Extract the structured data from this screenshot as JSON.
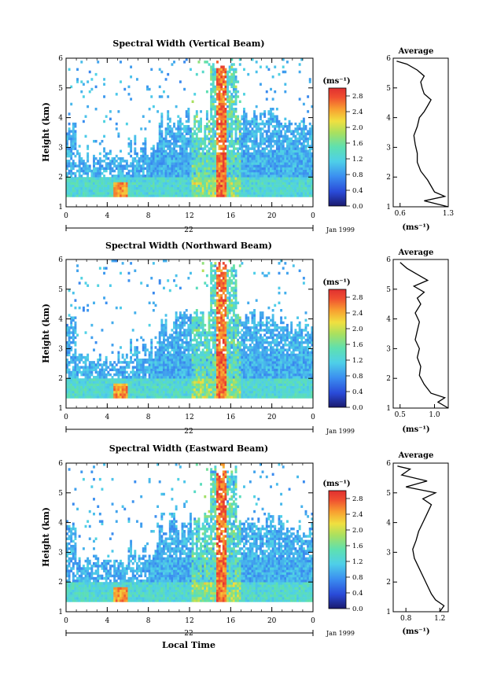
{
  "figure": {
    "xlabel": "Local Time",
    "day_label": "22",
    "month_label": "Jan 1999",
    "ylabel": "Height (km)",
    "avg_title": "Average",
    "unit": "(ms⁻¹)"
  },
  "chart_data": [
    {
      "type": "heatmap",
      "title": "Spectral Width (Vertical Beam)",
      "x_ticks": [
        "0",
        "4",
        "8",
        "12",
        "16",
        "20",
        "0"
      ],
      "xlim": [
        0,
        24
      ],
      "y_ticks": [
        "1",
        "2",
        "3",
        "4",
        "5",
        "6"
      ],
      "ylim": [
        1,
        6
      ],
      "colorbar_ticks": [
        "0.0",
        "0.4",
        "0.8",
        "1.2",
        "1.6",
        "2.0",
        "2.4",
        "2.8"
      ],
      "colorbar_range": [
        0,
        3.0
      ],
      "average_profile": {
        "x_ticks": [
          "0.6",
          "1.3"
        ],
        "xlim": [
          0.5,
          1.3
        ],
        "heights": [
          1.0,
          1.2,
          1.35,
          1.5,
          1.7,
          1.9,
          2.2,
          2.5,
          2.8,
          3.1,
          3.4,
          3.7,
          4.0,
          4.2,
          4.4,
          4.6,
          4.8,
          5.0,
          5.2,
          5.4,
          5.6,
          5.8,
          5.9
        ],
        "values": [
          1.3,
          0.95,
          1.25,
          1.1,
          1.05,
          1.0,
          0.9,
          0.85,
          0.85,
          0.82,
          0.8,
          0.85,
          0.88,
          0.95,
          1.0,
          1.05,
          0.95,
          0.92,
          0.9,
          0.95,
          0.85,
          0.7,
          0.55
        ]
      }
    },
    {
      "type": "heatmap",
      "title": "Spectral Width (Northward Beam)",
      "x_ticks": [
        "0",
        "4",
        "8",
        "12",
        "16",
        "20",
        "0"
      ],
      "xlim": [
        0,
        24
      ],
      "y_ticks": [
        "1",
        "2",
        "3",
        "4",
        "5",
        "6"
      ],
      "ylim": [
        1,
        6
      ],
      "colorbar_ticks": [
        "0.0",
        "0.4",
        "0.8",
        "1.2",
        "1.6",
        "2.0",
        "2.4",
        "2.8"
      ],
      "colorbar_range": [
        0,
        3.0
      ],
      "average_profile": {
        "x_ticks": [
          "0.5",
          "1.0"
        ],
        "xlim": [
          0.4,
          1.2
        ],
        "heights": [
          1.0,
          1.2,
          1.35,
          1.5,
          1.8,
          2.1,
          2.4,
          2.7,
          3.0,
          3.3,
          3.6,
          3.9,
          4.2,
          4.5,
          4.7,
          4.9,
          5.1,
          5.3,
          5.5,
          5.7,
          5.9
        ],
        "values": [
          1.2,
          1.05,
          1.15,
          0.95,
          0.85,
          0.78,
          0.8,
          0.75,
          0.78,
          0.72,
          0.75,
          0.78,
          0.72,
          0.8,
          0.75,
          0.85,
          0.7,
          0.9,
          0.75,
          0.6,
          0.5
        ]
      }
    },
    {
      "type": "heatmap",
      "title": "Spectral Width (Eastward Beam)",
      "x_ticks": [
        "0",
        "4",
        "8",
        "12",
        "16",
        "20",
        "0"
      ],
      "xlim": [
        0,
        24
      ],
      "y_ticks": [
        "1",
        "2",
        "3",
        "4",
        "5",
        "6"
      ],
      "ylim": [
        1,
        6
      ],
      "colorbar_ticks": [
        "0.0",
        "0.4",
        "0.8",
        "1.2",
        "1.6",
        "2.0",
        "2.4",
        "2.8"
      ],
      "colorbar_range": [
        0,
        3.0
      ],
      "average_profile": {
        "x_ticks": [
          "0.8",
          "1.2"
        ],
        "xlim": [
          0.65,
          1.3
        ],
        "heights": [
          1.0,
          1.2,
          1.4,
          1.6,
          1.9,
          2.2,
          2.5,
          2.8,
          3.1,
          3.4,
          3.7,
          4.0,
          4.3,
          4.6,
          4.8,
          5.0,
          5.2,
          5.4,
          5.6,
          5.8,
          5.9
        ],
        "values": [
          1.2,
          1.25,
          1.15,
          1.1,
          1.05,
          1.0,
          0.95,
          0.9,
          0.88,
          0.92,
          0.95,
          1.0,
          1.05,
          1.1,
          1.0,
          1.15,
          0.8,
          1.05,
          0.75,
          0.85,
          0.7
        ]
      }
    }
  ]
}
